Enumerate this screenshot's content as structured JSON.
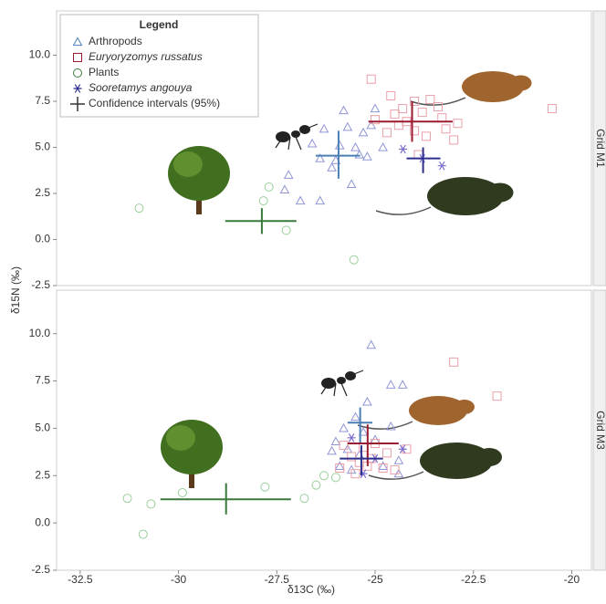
{
  "x_label": "δ13C (‰)",
  "y_label": "δ15N (‰)",
  "legend": {
    "title": "Legend",
    "ci_label": "Confidence intervals (95%)"
  },
  "chart_data": [
    {
      "type": "scatter",
      "strip_label": "Grid M1",
      "xlim": [
        -33.1,
        -19.5
      ],
      "ylim": [
        -2.5,
        12.4
      ],
      "yticks": [
        {
          "value": 10,
          "label": "10.0"
        },
        7.5,
        {
          "value": 5,
          "label": "5.0"
        },
        2.5,
        {
          "value": 0,
          "label": "0.0"
        },
        -2.5
      ],
      "series": [
        {
          "name": "Arthropods",
          "marker": "triangle",
          "color": "#8f95d6",
          "ci_color": "#4a7fb5",
          "x": [
            -27.3,
            -27.2,
            -26.9,
            -26.4,
            -26.0,
            -25.9,
            -25.7,
            -26.3,
            -26.6,
            -25.8,
            -25.5,
            -25.3,
            -25.6,
            -25.1,
            -25.0,
            -25.2,
            -24.8,
            -26.4,
            -26.1,
            -25.4
          ],
          "y": [
            2.7,
            3.5,
            2.1,
            2.1,
            4.3,
            5.1,
            6.1,
            6.0,
            5.2,
            7.0,
            5.0,
            5.8,
            3.0,
            6.2,
            7.1,
            4.5,
            5.0,
            4.4,
            3.9,
            4.6
          ],
          "ci": {
            "x": -25.93,
            "y": 4.55,
            "x_range": [
              -26.51,
              -25.38
            ],
            "y_range": [
              3.3,
              5.9
            ]
          }
        },
        {
          "name": "Euryoryzomys russatus",
          "italic": true,
          "marker": "square",
          "color": "#e8a0a8",
          "ci_color": "#9b1b30",
          "x": [
            -25.1,
            -24.6,
            -24.3,
            -24.0,
            -23.8,
            -23.6,
            -23.4,
            -23.3,
            -23.2,
            -23.0,
            -24.5,
            -24.2,
            -24.0,
            -24.7,
            -25.0,
            -23.9,
            -20.5,
            -22.9,
            -24.4,
            -23.7
          ],
          "y": [
            8.7,
            7.8,
            7.1,
            7.5,
            6.9,
            7.6,
            7.2,
            6.6,
            6.0,
            5.4,
            6.8,
            6.4,
            5.9,
            5.8,
            6.5,
            4.6,
            7.1,
            6.3,
            6.2,
            5.6
          ],
          "ci": {
            "x": -24.06,
            "y": 6.4,
            "x_range": [
              -25.17,
              -23.03
            ],
            "y_range": [
              5.3,
              7.5
            ]
          }
        },
        {
          "name": "Plants",
          "marker": "circle",
          "color": "#9ccf9c",
          "ci_color": "#3a7a3a",
          "x": [
            -31.0,
            -27.84,
            -27.7,
            -27.26,
            -25.54
          ],
          "y": [
            1.7,
            2.1,
            2.85,
            0.5,
            -1.1
          ],
          "ci": {
            "x": -27.88,
            "y": 1.0,
            "x_range": [
              -28.81,
              -27.0
            ],
            "y_range": [
              0.3,
              1.7
            ]
          }
        },
        {
          "name": "Sooretamys angouya",
          "italic": true,
          "marker": "asterisk",
          "color": "#7a6fd0",
          "ci_color": "#2c2f8c",
          "x": [
            -24.29,
            -23.3,
            -23.8
          ],
          "y": [
            4.9,
            4.0,
            4.4
          ],
          "ci": {
            "x": -23.78,
            "y": 4.4,
            "x_range": [
              -24.2,
              -23.34
            ],
            "y_range": [
              3.6,
              5.0
            ]
          }
        }
      ]
    },
    {
      "type": "scatter",
      "strip_label": "Grid M3",
      "xlim": [
        -33.1,
        -19.5
      ],
      "ylim": [
        -2.5,
        12.3
      ],
      "xticks": [
        -32.5,
        -30,
        -27.5,
        -25,
        -22.5,
        -20
      ],
      "yticks": [
        {
          "value": 10,
          "label": "10.0"
        },
        7.5,
        {
          "value": 5,
          "label": "5.0"
        },
        2.5,
        {
          "value": 0,
          "label": "0.0"
        },
        -2.5
      ],
      "series": [
        {
          "marker": "triangle",
          "color": "#8f95d6",
          "ci_color": "#4a7fb5",
          "x": [
            -25.1,
            -24.6,
            -24.3,
            -25.2,
            -25.5,
            -25.8,
            -26.0,
            -25.7,
            -25.4,
            -25.0,
            -24.8,
            -24.4,
            -24.4,
            -26.1,
            -25.9,
            -25.3,
            -25.6,
            -24.6
          ],
          "y": [
            9.4,
            7.3,
            7.3,
            6.4,
            5.6,
            5.0,
            4.3,
            3.9,
            3.6,
            4.4,
            3.0,
            2.6,
            3.3,
            3.8,
            3.0,
            4.8,
            2.8,
            5.1
          ],
          "ci": {
            "x": -25.38,
            "y": 5.3,
            "x_range": [
              -25.7,
              -25.07
            ],
            "y_range": [
              4.2,
              6.1
            ]
          }
        },
        {
          "marker": "square",
          "color": "#e8a0a8",
          "ci_color": "#9b1b30",
          "x": [
            -23.0,
            -21.9,
            -25.8,
            -25.6,
            -25.4,
            -25.2,
            -24.8,
            -24.5,
            -24.2,
            -25.0,
            -25.5,
            -25.1,
            -24.7,
            -25.9,
            -25.3
          ],
          "y": [
            8.5,
            6.7,
            4.1,
            3.5,
            3.2,
            3.0,
            2.9,
            2.8,
            3.9,
            4.2,
            2.6,
            3.4,
            3.7,
            2.9,
            4.0
          ],
          "ci": {
            "x": -25.19,
            "y": 4.2,
            "x_range": [
              -25.7,
              -24.4
            ],
            "y_range": [
              3.0,
              5.2
            ]
          }
        },
        {
          "marker": "circle",
          "color": "#9ccf9c",
          "ci_color": "#3a7a3a",
          "x": [
            -31.3,
            -30.9,
            -30.7,
            -29.9,
            -27.8,
            -26.8,
            -26.5,
            -26.3,
            -26.0
          ],
          "y": [
            1.3,
            -0.6,
            1.0,
            1.6,
            1.9,
            1.3,
            2.0,
            2.5,
            2.4
          ],
          "ci": {
            "x": -28.79,
            "y": 1.25,
            "x_range": [
              -30.46,
              -27.14
            ],
            "y_range": [
              0.45,
              2.1
            ]
          }
        },
        {
          "marker": "asterisk",
          "color": "#7a6fd0",
          "ci_color": "#2c2f8c",
          "x": [
            -25.3,
            -24.3,
            -25.6,
            -25.0
          ],
          "y": [
            2.6,
            3.9,
            4.5,
            3.4
          ],
          "ci": {
            "x": -25.35,
            "y": 3.4,
            "x_range": [
              -25.9,
              -24.8
            ],
            "y_range": [
              2.5,
              4.1
            ]
          }
        }
      ]
    }
  ]
}
